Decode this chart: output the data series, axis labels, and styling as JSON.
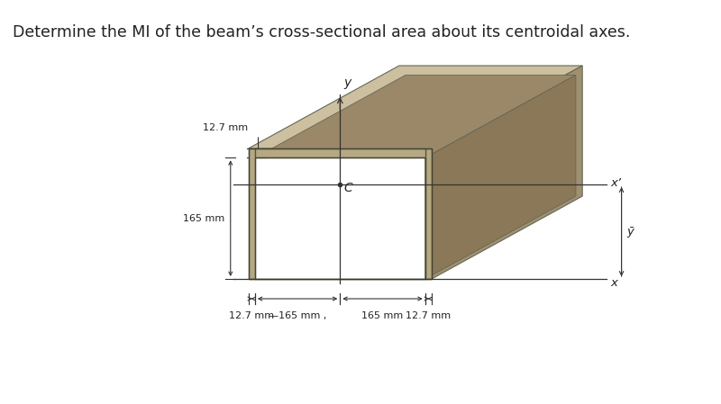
{
  "title": "Determine the MI of the beam’s cross-sectional area about its centroidal axes.",
  "title_fontsize": 12.5,
  "bg_color": "#ffffff",
  "beam_color_front": "#b5a882",
  "beam_color_top": "#ccc0a0",
  "beam_color_right": "#a09070",
  "beam_color_inner_top": "#9a8868",
  "beam_color_inner_left": "#8a7858",
  "text_color": "#222222",
  "dim_127_top": "12.7 mm",
  "dim_165_height": "165 mm",
  "dim_165_left": "165 mm",
  "dim_165_right": "165 mm",
  "dim_127_left_bot": "12.7 mm",
  "dim_127_right_bot": "12.7 mm",
  "label_C": "C",
  "label_y": "y",
  "label_x": "x",
  "label_xp": "x’",
  "label_ybar": "ȳ"
}
